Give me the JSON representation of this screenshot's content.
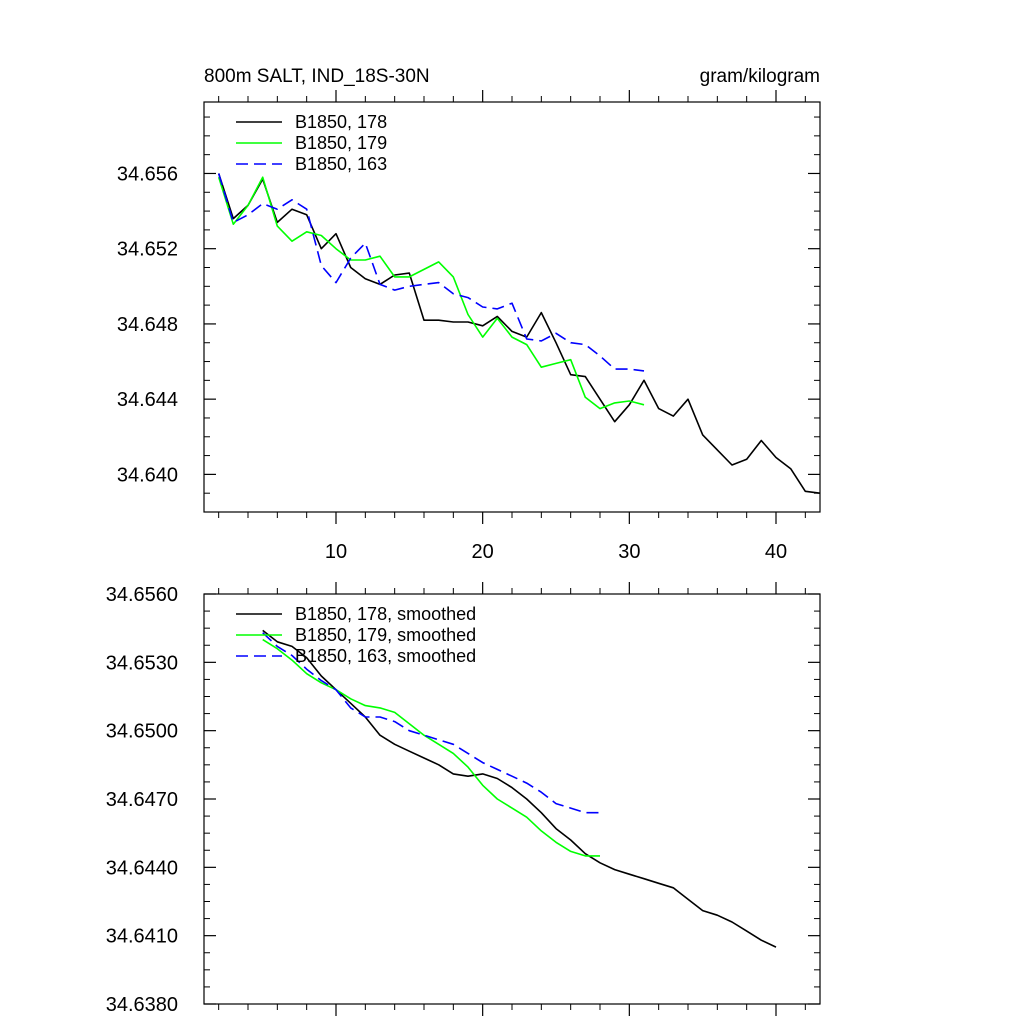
{
  "chart_data": [
    {
      "type": "line",
      "title": "800m SALT, IND_18S-30N",
      "units": "gram/kilogram",
      "xlabel": "",
      "ylabel": "",
      "xlim": [
        1,
        43
      ],
      "ylim": [
        34.638,
        34.6598
      ],
      "xticks": [
        10,
        20,
        30,
        40
      ],
      "xtick_labels": [
        "10",
        "20",
        "30",
        "40"
      ],
      "yticks": [
        34.64,
        34.644,
        34.648,
        34.652,
        34.656
      ],
      "ytick_labels": [
        "34.640",
        "34.644",
        "34.648",
        "34.652",
        "34.656"
      ],
      "legend": [
        "B1850, 178",
        "B1850, 179",
        "B1850, 163"
      ],
      "legend_position": "top-left",
      "series": [
        {
          "name": "B1850, 178",
          "color": "#000000",
          "dash": "solid",
          "x": [
            2,
            3,
            4,
            5,
            6,
            7,
            8,
            9,
            10,
            11,
            12,
            13,
            14,
            15,
            16,
            17,
            18,
            19,
            20,
            21,
            22,
            23,
            24,
            25,
            26,
            27,
            28,
            29,
            30,
            31,
            32,
            33,
            34,
            35,
            36,
            37,
            38,
            39,
            40,
            41,
            42,
            43
          ],
          "y": [
            34.656,
            34.6536,
            34.6543,
            34.6557,
            34.6534,
            34.6541,
            34.6538,
            34.652,
            34.6528,
            34.651,
            34.6504,
            34.6501,
            34.6506,
            34.6507,
            34.6482,
            34.6482,
            34.6481,
            34.6481,
            34.6479,
            34.6484,
            34.6476,
            34.6473,
            34.6486,
            34.647,
            34.6453,
            34.6452,
            34.644,
            34.6428,
            34.6437,
            34.645,
            34.6435,
            34.6431,
            34.644,
            34.6421,
            34.6413,
            34.6405,
            34.6408,
            34.6418,
            34.6409,
            34.6403,
            34.6391,
            34.639
          ]
        },
        {
          "name": "B1850, 179",
          "color": "#00ff00",
          "dash": "solid",
          "x": [
            2,
            3,
            4,
            5,
            6,
            7,
            8,
            9,
            10,
            11,
            12,
            13,
            14,
            15,
            16,
            17,
            18,
            19,
            20,
            21,
            22,
            23,
            24,
            25,
            26,
            27,
            28,
            29,
            30,
            31
          ],
          "y": [
            34.6558,
            34.6533,
            34.6543,
            34.6558,
            34.6532,
            34.6524,
            34.6529,
            34.6527,
            34.652,
            34.6514,
            34.6514,
            34.6516,
            34.6505,
            34.6505,
            34.6509,
            34.6513,
            34.6505,
            34.6485,
            34.6473,
            34.6483,
            34.6473,
            34.6469,
            34.6457,
            34.6459,
            34.6461,
            34.6441,
            34.6435,
            34.6438,
            34.6439,
            34.6437
          ]
        },
        {
          "name": "B1850, 163",
          "color": "#0000ff",
          "dash": "dashed",
          "x": [
            2,
            3,
            4,
            5,
            6,
            7,
            8,
            9,
            10,
            11,
            12,
            13,
            14,
            15,
            16,
            17,
            18,
            19,
            20,
            21,
            22,
            23,
            24,
            25,
            26,
            27,
            28,
            29,
            30,
            31
          ],
          "y": [
            34.656,
            34.6534,
            34.6538,
            34.6544,
            34.6541,
            34.6546,
            34.6541,
            34.6511,
            34.6502,
            34.6515,
            34.6523,
            34.6501,
            34.6498,
            34.65,
            34.6501,
            34.6502,
            34.6496,
            34.6494,
            34.6489,
            34.6488,
            34.6491,
            34.6472,
            34.6471,
            34.6475,
            34.647,
            34.6469,
            34.6463,
            34.6456,
            34.6456,
            34.6455
          ]
        }
      ]
    },
    {
      "type": "line",
      "title": "",
      "xlabel": "",
      "ylabel": "",
      "xlim": [
        1,
        43
      ],
      "ylim": [
        34.638,
        34.656
      ],
      "xticks": [
        10,
        20,
        30,
        40
      ],
      "xtick_labels": [],
      "yticks": [
        34.638,
        34.641,
        34.644,
        34.647,
        34.65,
        34.653,
        34.656
      ],
      "ytick_labels": [
        "34.6380",
        "34.6410",
        "34.6440",
        "34.6470",
        "34.6500",
        "34.6530",
        "34.6560"
      ],
      "legend": [
        "B1850, 178, smoothed",
        "B1850, 179, smoothed",
        "B1850, 163, smoothed"
      ],
      "legend_position": "top-left",
      "series": [
        {
          "name": "B1850, 178, smoothed",
          "color": "#000000",
          "dash": "solid",
          "x": [
            5,
            6,
            7,
            8,
            9,
            10,
            11,
            12,
            13,
            14,
            15,
            16,
            17,
            18,
            19,
            20,
            21,
            22,
            23,
            24,
            25,
            26,
            27,
            28,
            29,
            30,
            31,
            32,
            33,
            34,
            35,
            36,
            37,
            38,
            39,
            40
          ],
          "y": [
            34.6544,
            34.6539,
            34.6537,
            34.6532,
            34.6524,
            34.6518,
            34.6512,
            34.6506,
            34.6498,
            34.6494,
            34.6491,
            34.6488,
            34.6485,
            34.6481,
            34.648,
            34.6481,
            34.6479,
            34.6475,
            34.647,
            34.6464,
            34.6457,
            34.6452,
            34.6446,
            34.6442,
            34.6439,
            34.6437,
            34.6435,
            34.6433,
            34.6431,
            34.6426,
            34.6421,
            34.6419,
            34.6416,
            34.6412,
            34.6408,
            34.6405
          ]
        },
        {
          "name": "B1850, 179, smoothed",
          "color": "#00ff00",
          "dash": "solid",
          "x": [
            5,
            6,
            7,
            8,
            9,
            10,
            11,
            12,
            13,
            14,
            15,
            16,
            17,
            18,
            19,
            20,
            21,
            22,
            23,
            24,
            25,
            26,
            27,
            28
          ],
          "y": [
            34.654,
            34.6536,
            34.6531,
            34.6525,
            34.6521,
            34.6518,
            34.6514,
            34.6511,
            34.651,
            34.6508,
            34.6503,
            34.6498,
            34.6494,
            34.649,
            34.6484,
            34.6476,
            34.647,
            34.6466,
            34.6462,
            34.6456,
            34.6451,
            34.6447,
            34.6445,
            34.6445
          ]
        },
        {
          "name": "B1850, 163, smoothed",
          "color": "#0000ff",
          "dash": "dashed",
          "x": [
            5,
            6,
            7,
            8,
            9,
            10,
            11,
            12,
            13,
            14,
            15,
            16,
            17,
            18,
            19,
            20,
            21,
            22,
            23,
            24,
            25,
            26,
            27,
            28
          ],
          "y": [
            34.6543,
            34.6537,
            34.6533,
            34.6527,
            34.6522,
            34.6518,
            34.651,
            34.6506,
            34.6506,
            34.6504,
            34.65,
            34.6498,
            34.6496,
            34.6494,
            34.649,
            34.6486,
            34.6483,
            34.648,
            34.6477,
            34.6473,
            34.6468,
            34.6466,
            34.6464,
            34.6464
          ]
        }
      ]
    }
  ]
}
